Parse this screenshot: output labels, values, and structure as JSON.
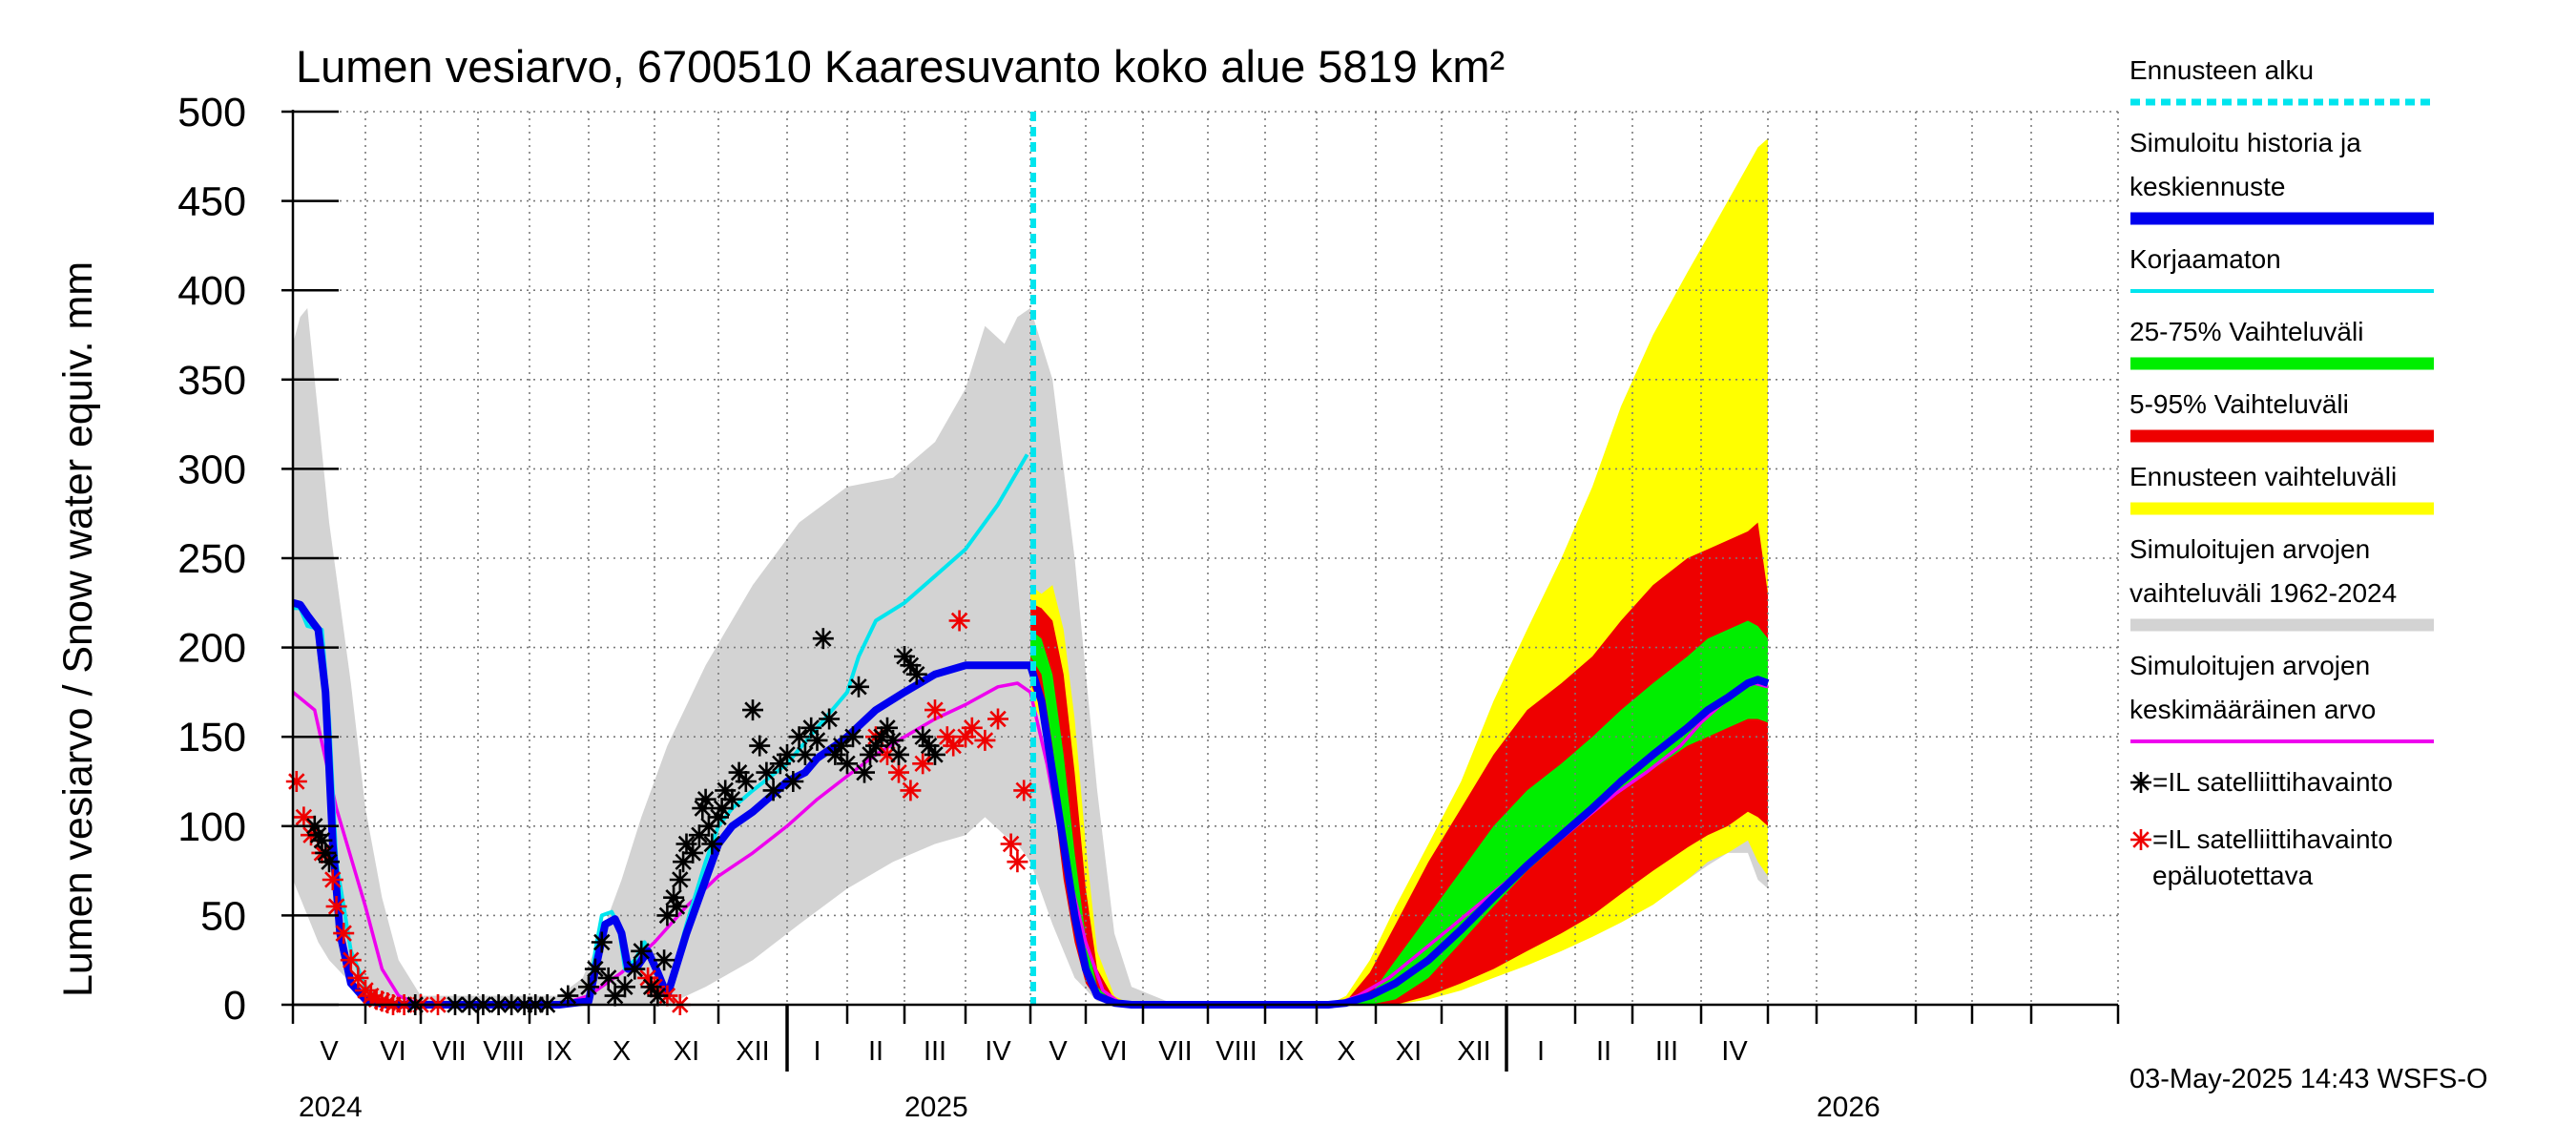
{
  "chart_data": {
    "type": "area",
    "title": "Lumen vesiarvo, 6700510 Kaaresuvanto koko alue 5819 km²",
    "ylabel": "Lumen vesiarvo / Snow water equiv.    mm",
    "ylim": [
      0,
      500
    ],
    "yticks": [
      0,
      50,
      100,
      150,
      200,
      250,
      300,
      350,
      400,
      450,
      500
    ],
    "months": [
      "V",
      "VI",
      "VII",
      "VIII",
      "IX",
      "X",
      "XI",
      "XII",
      "I",
      "II",
      "III",
      "IV",
      "V",
      "VI",
      "VII",
      "VIII",
      "IX",
      "X",
      "XI",
      "XII",
      "I",
      "II",
      "III",
      "IV"
    ],
    "years": [
      "2024",
      "2025",
      "2026"
    ],
    "forecast_start": "2025-05-03",
    "timestamp": "03-May-2025 14:43 WSFS-O",
    "colors": {
      "forecast_start": "#00e5ee",
      "simulated": "#0000ee",
      "uncorrected": "#00e5ee",
      "p25_75": "#00ee00",
      "p5_95": "#ee0000",
      "forecast_range": "#ffff00",
      "hist_range": "#d3d3d3",
      "hist_mean": "#ee00ee",
      "obs": "#000000",
      "obs_unreliable": "#ee0000"
    },
    "legend": [
      {
        "key": "forecast_start",
        "lines": [
          "Ennusteen alku"
        ]
      },
      {
        "key": "simulated",
        "lines": [
          "Simuloitu historia ja",
          "keskiennuste"
        ]
      },
      {
        "key": "uncorrected",
        "lines": [
          "Korjaamaton"
        ]
      },
      {
        "key": "p25_75",
        "lines": [
          "25-75% Vaihteluväli"
        ]
      },
      {
        "key": "p5_95",
        "lines": [
          "5-95% Vaihteluväli"
        ]
      },
      {
        "key": "forecast_range",
        "lines": [
          "Ennusteen vaihteluväli"
        ]
      },
      {
        "key": "hist_range",
        "lines": [
          "Simuloitujen arvojen",
          "vaihteluväli 1962-2024"
        ]
      },
      {
        "key": "hist_mean",
        "lines": [
          "Simuloitujen arvojen",
          "keskimääräinen arvo"
        ]
      },
      {
        "key": "obs",
        "lines": [
          "=IL satelliittihavainto"
        ]
      },
      {
        "key": "obs_unreliable",
        "lines": [
          "=IL satelliittihavainto",
          "epäluotettava"
        ]
      }
    ],
    "series": [
      {
        "name": "Simuloitujen arvojen vaihteluväli 1962-2024",
        "type": "band",
        "x": [
          0,
          0.1,
          0.2,
          0.35,
          0.5,
          0.8,
          1.0,
          1.3,
          1.6,
          2.0,
          4.5,
          4.9,
          5.2,
          5.5,
          5.8,
          6.2,
          6.8,
          7.5,
          8.2,
          9.0,
          9.8,
          10.5,
          11.0,
          11.3,
          11.6,
          11.8,
          12.0,
          12.4,
          12.8,
          13.2,
          13.5,
          13.8,
          14.5,
          16.9,
          17.2,
          17.5,
          17.9,
          18.3,
          18.8,
          19.3,
          19.8,
          20.3,
          20.8,
          21.3,
          21.8,
          22.3,
          22.8,
          23.1,
          23.4,
          23.7,
          23.85,
          24.0
        ],
        "low": [
          70,
          60,
          50,
          35,
          25,
          12,
          5,
          1,
          0,
          0,
          0,
          0,
          0,
          0,
          0,
          0,
          10,
          25,
          45,
          65,
          80,
          90,
          95,
          105,
          95,
          90,
          80,
          45,
          15,
          2,
          0,
          0,
          0,
          0,
          0,
          0,
          0,
          0,
          3,
          10,
          18,
          27,
          37,
          45,
          52,
          60,
          70,
          78,
          85,
          85,
          70,
          65
        ],
        "high": [
          370,
          385,
          390,
          330,
          270,
          180,
          110,
          60,
          25,
          5,
          5,
          15,
          40,
          70,
          105,
          145,
          190,
          235,
          270,
          290,
          295,
          315,
          345,
          380,
          370,
          385,
          390,
          350,
          250,
          120,
          40,
          10,
          0,
          0,
          0,
          0,
          5,
          20,
          45,
          70,
          100,
          130,
          165,
          205,
          240,
          275,
          315,
          360,
          400,
          410,
          405,
          420
        ]
      },
      {
        "name": "Ennusteen vaihteluväli",
        "type": "band",
        "x": [
          12.0,
          12.2,
          12.4,
          12.6,
          12.8,
          13.0,
          13.2,
          13.5,
          13.8,
          14.5,
          16.9,
          17.2,
          17.5,
          17.9,
          18.3,
          18.8,
          19.3,
          19.8,
          20.3,
          20.8,
          21.3,
          21.8,
          22.3,
          22.8,
          23.1,
          23.4,
          23.7,
          23.85,
          24.0
        ],
        "low": [
          170,
          160,
          130,
          90,
          50,
          20,
          5,
          0,
          0,
          0,
          0,
          0,
          0,
          0,
          0,
          3,
          8,
          15,
          22,
          30,
          38,
          46,
          56,
          70,
          80,
          85,
          92,
          80,
          72
        ],
        "high": [
          235,
          230,
          235,
          210,
          160,
          90,
          30,
          5,
          0,
          0,
          0,
          0,
          5,
          25,
          55,
          90,
          125,
          170,
          210,
          250,
          290,
          335,
          375,
          410,
          430,
          450,
          470,
          480,
          485
        ]
      },
      {
        "name": "5-95% Vaihteluväli",
        "type": "band",
        "x": [
          12.0,
          12.2,
          12.4,
          12.6,
          12.8,
          13.0,
          13.2,
          13.5,
          13.8,
          14.5,
          16.9,
          17.2,
          17.5,
          17.9,
          18.3,
          18.8,
          19.3,
          19.8,
          20.3,
          20.8,
          21.3,
          21.8,
          22.3,
          22.8,
          23.1,
          23.4,
          23.7,
          23.85,
          24.0
        ],
        "low": [
          180,
          165,
          120,
          70,
          35,
          12,
          3,
          0,
          0,
          0,
          0,
          0,
          0,
          0,
          0,
          5,
          12,
          20,
          30,
          40,
          50,
          62,
          75,
          88,
          95,
          100,
          108,
          105,
          100
        ],
        "high": [
          225,
          222,
          215,
          185,
          130,
          65,
          20,
          3,
          0,
          0,
          0,
          0,
          2,
          18,
          45,
          80,
          110,
          140,
          165,
          180,
          195,
          215,
          235,
          250,
          255,
          260,
          265,
          270,
          230
        ]
      },
      {
        "name": "25-75% Vaihteluväli",
        "type": "band",
        "x": [
          12.0,
          12.2,
          12.4,
          12.6,
          12.8,
          13.0,
          13.2,
          13.5,
          13.8,
          14.5,
          16.9,
          17.2,
          17.5,
          17.9,
          18.3,
          18.8,
          19.3,
          19.8,
          20.3,
          20.8,
          21.3,
          21.8,
          22.3,
          22.8,
          23.1,
          23.4,
          23.7,
          23.85,
          24.0
        ],
        "low": [
          195,
          185,
          145,
          95,
          50,
          20,
          5,
          0,
          0,
          0,
          0,
          0,
          0,
          0,
          3,
          15,
          35,
          55,
          75,
          92,
          107,
          120,
          132,
          145,
          150,
          155,
          160,
          160,
          158
        ],
        "high": [
          210,
          205,
          185,
          140,
          85,
          38,
          10,
          1,
          0,
          0,
          0,
          0,
          0,
          5,
          25,
          50,
          75,
          100,
          120,
          135,
          150,
          165,
          180,
          195,
          205,
          210,
          215,
          212,
          205
        ]
      },
      {
        "name": "Simuloitujen arvojen keskimääräinen arvo",
        "type": "line",
        "x": [
          0,
          0.3,
          0.6,
          1.0,
          1.3,
          1.6,
          2.0,
          4.5,
          5.0,
          5.5,
          6.0,
          6.5,
          7.0,
          7.5,
          8.0,
          8.5,
          9.0,
          9.5,
          10.0,
          10.5,
          11.0,
          11.5,
          11.8,
          12.0,
          12.3,
          12.6,
          13.0,
          13.3,
          13.6,
          14.0,
          16.9,
          17.3,
          17.7,
          18.2,
          18.7,
          19.2,
          19.7,
          20.2,
          20.7,
          21.2,
          21.7,
          22.2,
          22.7,
          23.0,
          23.3,
          23.6,
          23.8,
          24.0
        ],
        "y": [
          175,
          165,
          110,
          55,
          20,
          5,
          0,
          0,
          5,
          18,
          35,
          55,
          72,
          85,
          100,
          115,
          128,
          140,
          150,
          160,
          168,
          178,
          180,
          175,
          135,
          85,
          35,
          8,
          1,
          0,
          0,
          0,
          5,
          15,
          30,
          45,
          60,
          75,
          90,
          105,
          118,
          130,
          145,
          158,
          168,
          177,
          180,
          178
        ]
      },
      {
        "name": "Korjaamaton",
        "type": "line",
        "x": [
          0,
          0.1,
          0.2,
          0.4,
          0.5,
          0.6,
          0.8,
          1.0,
          1.2,
          1.4,
          4.5,
          5.0,
          5.1,
          5.2,
          5.35,
          5.45,
          5.55,
          5.7,
          5.85,
          6.0,
          6.2,
          6.5,
          6.8,
          7.0,
          7.2,
          7.5,
          8.0,
          8.5,
          9.0,
          9.2,
          9.5,
          10.0,
          10.5,
          11.0,
          11.5,
          11.95
        ],
        "y": [
          222,
          222,
          212,
          210,
          160,
          80,
          30,
          10,
          3,
          0,
          0,
          2,
          30,
          50,
          52,
          45,
          20,
          25,
          35,
          20,
          5,
          45,
          80,
          100,
          110,
          120,
          135,
          155,
          175,
          195,
          215,
          225,
          240,
          255,
          280,
          308
        ]
      },
      {
        "name": "Simuloitu historia ja keskiennuste",
        "type": "line",
        "x": [
          0,
          0.1,
          0.2,
          0.35,
          0.45,
          0.55,
          0.65,
          0.8,
          1.0,
          1.2,
          1.4,
          4.5,
          5.0,
          5.15,
          5.25,
          5.4,
          5.5,
          5.6,
          5.75,
          5.9,
          6.05,
          6.2,
          6.5,
          6.8,
          7.0,
          7.2,
          7.5,
          7.8,
          8.0,
          8.3,
          8.5,
          8.8,
          9.0,
          9.5,
          10.0,
          10.5,
          11.0,
          11.5,
          12.0,
          12.2,
          12.4,
          12.6,
          12.8,
          13.0,
          13.2,
          13.5,
          13.8,
          14.0,
          16.9,
          17.2,
          17.5,
          17.9,
          18.3,
          18.8,
          19.3,
          19.8,
          20.3,
          20.8,
          21.3,
          21.8,
          22.3,
          22.8,
          23.1,
          23.4,
          23.7,
          23.85,
          24.0
        ],
        "y": [
          225,
          224,
          218,
          210,
          175,
          90,
          40,
          12,
          3,
          1,
          0,
          0,
          2,
          28,
          45,
          48,
          40,
          20,
          22,
          30,
          18,
          5,
          40,
          70,
          90,
          100,
          108,
          118,
          125,
          130,
          138,
          145,
          150,
          165,
          175,
          185,
          190,
          190,
          190,
          170,
          130,
          90,
          50,
          20,
          5,
          1,
          0,
          0,
          0,
          0,
          1,
          5,
          12,
          25,
          42,
          60,
          78,
          95,
          110,
          125,
          140,
          155,
          165,
          172,
          180,
          182,
          180
        ]
      }
    ],
    "scatter": {
      "obs": {
        "x": [
          0.3,
          0.35,
          0.4,
          0.45,
          0.5,
          1.9,
          2.6,
          2.85,
          3.1,
          3.4,
          3.65,
          3.9,
          4.1,
          4.3,
          4.65,
          5.0,
          5.1,
          5.2,
          5.3,
          5.4,
          5.55,
          5.7,
          5.8,
          5.95,
          6.05,
          6.15,
          6.2,
          6.3,
          6.35,
          6.4,
          6.45,
          6.5,
          6.6,
          6.7,
          6.75,
          6.8,
          6.85,
          6.9,
          7.0,
          7.05,
          7.1,
          7.2,
          7.3,
          7.4,
          7.5,
          7.6,
          7.7,
          7.8,
          7.9,
          8.0,
          8.1,
          8.2,
          8.3,
          8.4,
          8.5,
          8.6,
          8.7,
          8.8,
          8.9,
          9.0,
          9.1,
          9.2,
          9.3,
          9.4,
          9.5,
          9.6,
          9.7,
          9.8,
          9.9,
          10.0,
          10.1,
          10.2,
          10.3,
          10.4,
          10.5
        ],
        "y": [
          100,
          95,
          92,
          85,
          80,
          0,
          0,
          0,
          0,
          0,
          0,
          0,
          0,
          0,
          5,
          10,
          20,
          35,
          15,
          5,
          10,
          20,
          30,
          10,
          5,
          25,
          50,
          60,
          55,
          70,
          80,
          90,
          85,
          95,
          110,
          115,
          100,
          90,
          105,
          110,
          120,
          115,
          130,
          125,
          165,
          145,
          130,
          120,
          135,
          140,
          125,
          150,
          140,
          155,
          148,
          205,
          160,
          140,
          145,
          135,
          150,
          178,
          130,
          140,
          145,
          150,
          155,
          148,
          140,
          195,
          190,
          185,
          150,
          145,
          140
        ]
      },
      "obs_unreliable": {
        "x": [
          0.05,
          0.15,
          0.25,
          0.4,
          0.55,
          0.6,
          0.7,
          0.8,
          0.9,
          1.0,
          1.1,
          1.2,
          1.3,
          1.4,
          1.5,
          1.7,
          2.0,
          2.3,
          5.9,
          6.0,
          6.2,
          6.4,
          9.5,
          9.7,
          9.9,
          10.1,
          10.3,
          10.5,
          10.7,
          10.9,
          11.1,
          11.3,
          11.5,
          11.7,
          11.8,
          11.9,
          10.8,
          11.0
        ],
        "y": [
          125,
          105,
          95,
          85,
          70,
          55,
          40,
          25,
          15,
          8,
          5,
          3,
          2,
          1,
          0,
          0,
          0,
          0,
          15,
          10,
          5,
          0,
          150,
          140,
          130,
          120,
          135,
          165,
          150,
          215,
          155,
          148,
          160,
          90,
          80,
          120,
          145,
          150
        ]
      }
    }
  }
}
